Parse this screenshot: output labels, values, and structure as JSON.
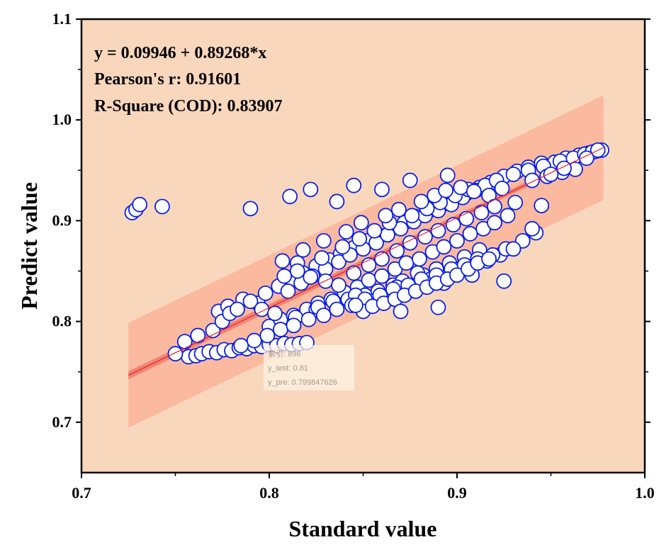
{
  "chart_data": {
    "type": "scatter",
    "xlabel": "Standard value",
    "ylabel": "Predict value",
    "xlim": [
      0.7,
      1.0
    ],
    "ylim": [
      0.65,
      1.1
    ],
    "xticks": [
      "0.7",
      "0.8",
      "0.9",
      "1.0"
    ],
    "yticks": [
      "0.7",
      "0.8",
      "0.9",
      "1.0",
      "1.1"
    ],
    "fit": {
      "intercept": 0.09946,
      "slope": 0.89268,
      "x_range": [
        0.725,
        0.978
      ]
    },
    "prediction_band_halfwidth": 0.052,
    "confidence_band_halfwidth": 0.004,
    "annotations": [
      "y = 0.09946 + 0.89268*x",
      "Pearson's r: 0.91601",
      "R-Square (COD): 0.83907"
    ],
    "tooltip": {
      "lines": [
        "索引: 896",
        "y_test: 0.81",
        "y_pre: 0.799847626"
      ]
    },
    "series": [
      {
        "name": "samples",
        "x": [
          0.727,
          0.729,
          0.731,
          0.743,
          0.79,
          0.811,
          0.822,
          0.845,
          0.836,
          0.86,
          0.875,
          0.895,
          0.757,
          0.761,
          0.764,
          0.768,
          0.772,
          0.776,
          0.78,
          0.784,
          0.788,
          0.792,
          0.796,
          0.8,
          0.804,
          0.808,
          0.812,
          0.816,
          0.82,
          0.75,
          0.755,
          0.762,
          0.77,
          0.773,
          0.778,
          0.786,
          0.794,
          0.775,
          0.779,
          0.783,
          0.79,
          0.798,
          0.805,
          0.812,
          0.818,
          0.825,
          0.832,
          0.838,
          0.845,
          0.852,
          0.858,
          0.865,
          0.872,
          0.878,
          0.885,
          0.892,
          0.898,
          0.905,
          0.912,
          0.918,
          0.925,
          0.932,
          0.938,
          0.945,
          0.952,
          0.958,
          0.965,
          0.97,
          0.974,
          0.977,
          0.8,
          0.806,
          0.813,
          0.82,
          0.826,
          0.833,
          0.84,
          0.847,
          0.853,
          0.86,
          0.867,
          0.873,
          0.88,
          0.887,
          0.893,
          0.9,
          0.907,
          0.914,
          0.92,
          0.927,
          0.81,
          0.817,
          0.823,
          0.83,
          0.837,
          0.843,
          0.85,
          0.857,
          0.863,
          0.87,
          0.877,
          0.883,
          0.89,
          0.897,
          0.903,
          0.91,
          0.825,
          0.835,
          0.842,
          0.851,
          0.858,
          0.866,
          0.871,
          0.882,
          0.889,
          0.896,
          0.904,
          0.912,
          0.808,
          0.815,
          0.828,
          0.839,
          0.848,
          0.856,
          0.864,
          0.876,
          0.884,
          0.891,
          0.899,
          0.906,
          0.915,
          0.921,
          0.93,
          0.938,
          0.946,
          0.955,
          0.962,
          0.968,
          0.972,
          0.975,
          0.807,
          0.818,
          0.829,
          0.841,
          0.849,
          0.862,
          0.869,
          0.881,
          0.888,
          0.894,
          0.902,
          0.909,
          0.917,
          0.924,
          0.931,
          0.94,
          0.948,
          0.956,
          0.963,
          0.969,
          0.796,
          0.803,
          0.814,
          0.826,
          0.834,
          0.846,
          0.855,
          0.868,
          0.879,
          0.886,
          0.893,
          0.901,
          0.908,
          0.916,
          0.923,
          0.93,
          0.935,
          0.942,
          0.95,
          0.957,
          0.785,
          0.792,
          0.799,
          0.806,
          0.813,
          0.821,
          0.829,
          0.836,
          0.844,
          0.851,
          0.859,
          0.866,
          0.874,
          0.881,
          0.889,
          0.897,
          0.904,
          0.911,
          0.919,
          0.926,
          0.815,
          0.822,
          0.83,
          0.837,
          0.845,
          0.853,
          0.86,
          0.868,
          0.875,
          0.883,
          0.89,
          0.898,
          0.905,
          0.913,
          0.92,
          0.85,
          0.855,
          0.861,
          0.867,
          0.872,
          0.878,
          0.884,
          0.889,
          0.895,
          0.9,
          0.906,
          0.911,
          0.917,
          0.89,
          0.87,
          0.846,
          0.93,
          0.945,
          0.94,
          0.925
        ],
        "y": [
          0.908,
          0.911,
          0.916,
          0.914,
          0.912,
          0.924,
          0.931,
          0.935,
          0.919,
          0.931,
          0.94,
          0.945,
          0.765,
          0.766,
          0.768,
          0.77,
          0.769,
          0.772,
          0.771,
          0.774,
          0.773,
          0.776,
          0.775,
          0.777,
          0.776,
          0.778,
          0.777,
          0.778,
          0.779,
          0.768,
          0.78,
          0.786,
          0.791,
          0.81,
          0.815,
          0.822,
          0.818,
          0.8,
          0.808,
          0.812,
          0.82,
          0.828,
          0.835,
          0.842,
          0.848,
          0.855,
          0.861,
          0.867,
          0.873,
          0.88,
          0.886,
          0.892,
          0.898,
          0.904,
          0.91,
          0.916,
          0.921,
          0.927,
          0.933,
          0.938,
          0.944,
          0.949,
          0.953,
          0.957,
          0.958,
          0.962,
          0.965,
          0.967,
          0.969,
          0.97,
          0.795,
          0.802,
          0.806,
          0.812,
          0.818,
          0.822,
          0.829,
          0.834,
          0.841,
          0.845,
          0.852,
          0.858,
          0.862,
          0.869,
          0.874,
          0.88,
          0.887,
          0.892,
          0.898,
          0.905,
          0.83,
          0.838,
          0.845,
          0.852,
          0.859,
          0.866,
          0.872,
          0.878,
          0.886,
          0.892,
          0.899,
          0.905,
          0.91,
          0.916,
          0.923,
          0.93,
          0.812,
          0.818,
          0.822,
          0.826,
          0.83,
          0.836,
          0.84,
          0.846,
          0.852,
          0.858,
          0.864,
          0.871,
          0.845,
          0.858,
          0.863,
          0.874,
          0.882,
          0.89,
          0.898,
          0.905,
          0.912,
          0.918,
          0.925,
          0.931,
          0.935,
          0.94,
          0.946,
          0.95,
          0.954,
          0.959,
          0.962,
          0.966,
          0.968,
          0.97,
          0.86,
          0.871,
          0.88,
          0.889,
          0.898,
          0.905,
          0.911,
          0.919,
          0.925,
          0.93,
          0.933,
          0.929,
          0.925,
          0.932,
          0.918,
          0.94,
          0.944,
          0.948,
          0.951,
          0.962,
          0.812,
          0.808,
          0.804,
          0.814,
          0.82,
          0.826,
          0.82,
          0.834,
          0.848,
          0.842,
          0.838,
          0.852,
          0.846,
          0.86,
          0.866,
          0.872,
          0.88,
          0.888,
          0.946,
          0.952,
          0.776,
          0.781,
          0.786,
          0.792,
          0.796,
          0.802,
          0.806,
          0.812,
          0.816,
          0.822,
          0.826,
          0.832,
          0.836,
          0.842,
          0.846,
          0.852,
          0.856,
          0.862,
          0.866,
          0.872,
          0.85,
          0.844,
          0.84,
          0.836,
          0.848,
          0.856,
          0.862,
          0.87,
          0.878,
          0.884,
          0.89,
          0.896,
          0.902,
          0.908,
          0.914,
          0.81,
          0.815,
          0.818,
          0.822,
          0.826,
          0.83,
          0.834,
          0.838,
          0.842,
          0.846,
          0.852,
          0.858,
          0.862,
          0.814,
          0.81,
          0.816,
          0.872,
          0.915,
          0.892,
          0.84
        ]
      }
    ]
  }
}
